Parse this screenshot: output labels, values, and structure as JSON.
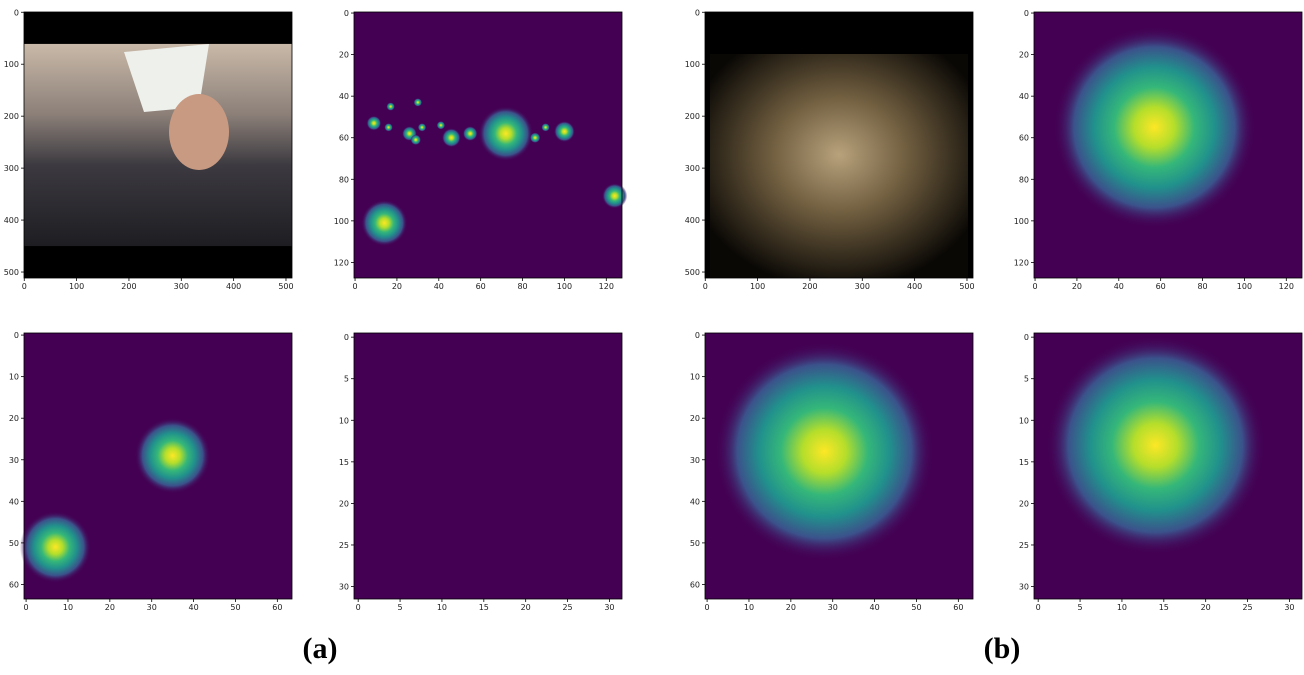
{
  "panels": [
    {
      "xlim": [
        -0.5,
        511.5
      ],
      "ylim": [
        511.5,
        -0.5
      ],
      "xticks": [
        0,
        100,
        200,
        300,
        400,
        500
      ],
      "yticks": [
        0,
        100,
        200,
        300,
        400,
        500
      ]
    },
    {
      "xlim": [
        -0.5,
        127.5
      ],
      "ylim": [
        127.5,
        -0.5
      ],
      "xticks": [
        0,
        20,
        40,
        60,
        80,
        100,
        120
      ],
      "yticks": [
        0,
        20,
        40,
        60,
        80,
        100,
        120
      ]
    },
    {
      "xlim": [
        -0.5,
        511.5
      ],
      "ylim": [
        511.5,
        -0.5
      ],
      "xticks": [
        0,
        100,
        200,
        300,
        400,
        500
      ],
      "yticks": [
        0,
        100,
        200,
        300,
        400,
        500
      ]
    },
    {
      "xlim": [
        -0.5,
        127.5
      ],
      "ylim": [
        127.5,
        -0.5
      ],
      "xticks": [
        0,
        20,
        40,
        60,
        80,
        100,
        120
      ],
      "yticks": [
        0,
        20,
        40,
        60,
        80,
        100,
        120
      ]
    },
    {
      "xlim": [
        -0.5,
        63.5
      ],
      "ylim": [
        63.5,
        -0.5
      ],
      "xticks": [
        0,
        10,
        20,
        30,
        40,
        50,
        60
      ],
      "yticks": [
        0,
        10,
        20,
        30,
        40,
        50,
        60
      ]
    },
    {
      "xlim": [
        -0.5,
        31.5
      ],
      "ylim": [
        31.5,
        -0.5
      ],
      "xticks": [
        0,
        5,
        10,
        15,
        20,
        25,
        30
      ],
      "yticks": [
        0,
        5,
        10,
        15,
        20,
        25,
        30
      ]
    },
    {
      "xlim": [
        -0.5,
        63.5
      ],
      "ylim": [
        63.5,
        -0.5
      ],
      "xticks": [
        0,
        10,
        20,
        30,
        40,
        50,
        60
      ],
      "yticks": [
        0,
        10,
        20,
        30,
        40,
        50,
        60
      ]
    },
    {
      "xlim": [
        -0.5,
        31.5
      ],
      "ylim": [
        31.5,
        -0.5
      ],
      "xticks": [
        0,
        5,
        10,
        15,
        20,
        25,
        30
      ],
      "yticks": [
        0,
        5,
        10,
        15,
        20,
        25,
        30
      ]
    }
  ],
  "captions": [
    "(a)",
    "(b)"
  ]
}
